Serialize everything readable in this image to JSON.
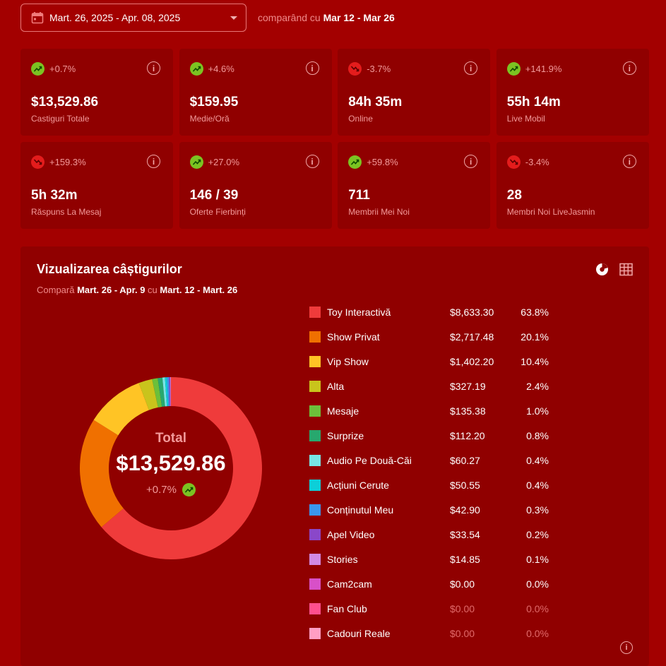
{
  "header": {
    "date_range": "Mart. 26, 2025 - Apr. 08, 2025",
    "compare_prefix": "comparând cu",
    "compare_range": "Mar 12 - Mar 26"
  },
  "stats": [
    {
      "trend": "up",
      "change": "+0.7%",
      "value": "$13,529.86",
      "label": "Castiguri Totale"
    },
    {
      "trend": "up",
      "change": "+4.6%",
      "value": "$159.95",
      "label": "Medie/Oră"
    },
    {
      "trend": "down",
      "change": "-3.7%",
      "value": "84h 35m",
      "label": "Online"
    },
    {
      "trend": "up",
      "change": "+141.9%",
      "value": "55h 14m",
      "label": "Live Mobil"
    },
    {
      "trend": "down",
      "change": "+159.3%",
      "value": "5h 32m",
      "label": "Răspuns La Mesaj"
    },
    {
      "trend": "up",
      "change": "+27.0%",
      "value": "146 / 39",
      "label": "Oferte Fierbinți"
    },
    {
      "trend": "up",
      "change": "+59.8%",
      "value": "711",
      "label": "Membrii Mei Noi"
    },
    {
      "trend": "down",
      "change": "-3.4%",
      "value": "28",
      "label": "Membri Noi LiveJasmin"
    }
  ],
  "earnings": {
    "title": "Vizualizarea câștigurilor",
    "compare_prefix": "Compară",
    "range_current": "Mart. 26 - Apr. 9",
    "compare_joiner": "cu",
    "range_previous": "Mart. 12 - Mart. 26",
    "total_label": "Total",
    "total_value": "$13,529.86",
    "total_change": "+0.7%",
    "total_trend": "up"
  },
  "chart_data": {
    "type": "pie",
    "categories": [
      "Toy Interactivă",
      "Show Privat",
      "Vip Show",
      "Alta",
      "Mesaje",
      "Surprize",
      "Audio Pe Două-Căi",
      "Acțiuni Cerute",
      "Conținutul Meu",
      "Apel Video",
      "Stories",
      "Cam2cam",
      "Fan Club",
      "Cadouri Reale"
    ],
    "amounts": [
      "$8,633.30",
      "$2,717.48",
      "$1,402.20",
      "$327.19",
      "$135.38",
      "$112.20",
      "$60.27",
      "$50.55",
      "$42.90",
      "$33.54",
      "$14.85",
      "$0.00",
      "$0.00",
      "$0.00"
    ],
    "percents": [
      "63.8%",
      "20.1%",
      "10.4%",
      "2.4%",
      "1.0%",
      "0.8%",
      "0.4%",
      "0.4%",
      "0.3%",
      "0.2%",
      "0.1%",
      "0.0%",
      "0.0%",
      "0.0%"
    ],
    "values": [
      8633.3,
      2717.48,
      1402.2,
      327.19,
      135.38,
      112.2,
      60.27,
      50.55,
      42.9,
      33.54,
      14.85,
      0,
      0,
      0
    ],
    "colors": [
      "#ef3b3b",
      "#f07000",
      "#ffc425",
      "#c9c41c",
      "#6cc03a",
      "#27a86e",
      "#77e5e5",
      "#0dcfd8",
      "#3a97ef",
      "#8a47c9",
      "#d18ae3",
      "#d850c8",
      "#ff4f8e",
      "#ff9ec4"
    ],
    "muted": [
      false,
      false,
      false,
      false,
      false,
      false,
      false,
      false,
      false,
      false,
      false,
      false,
      true,
      true
    ]
  }
}
